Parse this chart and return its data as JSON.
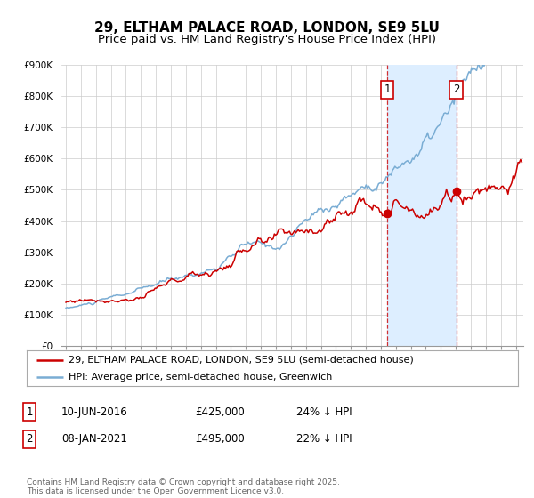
{
  "title": "29, ELTHAM PALACE ROAD, LONDON, SE9 5LU",
  "subtitle": "Price paid vs. HM Land Registry's House Price Index (HPI)",
  "ylim": [
    0,
    900000
  ],
  "xlim": [
    1994.7,
    2025.5
  ],
  "yticks": [
    0,
    100000,
    200000,
    300000,
    400000,
    500000,
    600000,
    700000,
    800000,
    900000
  ],
  "ytick_labels": [
    "£0",
    "£100K",
    "£200K",
    "£300K",
    "£400K",
    "£500K",
    "£600K",
    "£700K",
    "£800K",
    "£900K"
  ],
  "xticks": [
    1995,
    1996,
    1997,
    1998,
    1999,
    2000,
    2001,
    2002,
    2003,
    2004,
    2005,
    2006,
    2007,
    2008,
    2009,
    2010,
    2011,
    2012,
    2013,
    2014,
    2015,
    2016,
    2017,
    2018,
    2019,
    2020,
    2021,
    2022,
    2023,
    2024,
    2025
  ],
  "red_color": "#cc0000",
  "blue_color": "#7aadd4",
  "shade_color": "#ddeeff",
  "background_color": "#ffffff",
  "grid_color": "#cccccc",
  "sale1_x": 2016.44,
  "sale1_y": 425000,
  "sale2_x": 2021.02,
  "sale2_y": 495000,
  "legend_line1": "29, ELTHAM PALACE ROAD, LONDON, SE9 5LU (semi-detached house)",
  "legend_line2": "HPI: Average price, semi-detached house, Greenwich",
  "table_row1": [
    "1",
    "10-JUN-2016",
    "£425,000",
    "24% ↓ HPI"
  ],
  "table_row2": [
    "2",
    "08-JAN-2021",
    "£495,000",
    "22% ↓ HPI"
  ],
  "footer": "Contains HM Land Registry data © Crown copyright and database right 2025.\nThis data is licensed under the Open Government Licence v3.0.",
  "title_fontsize": 11,
  "subtitle_fontsize": 9.5,
  "tick_fontsize": 7.5
}
